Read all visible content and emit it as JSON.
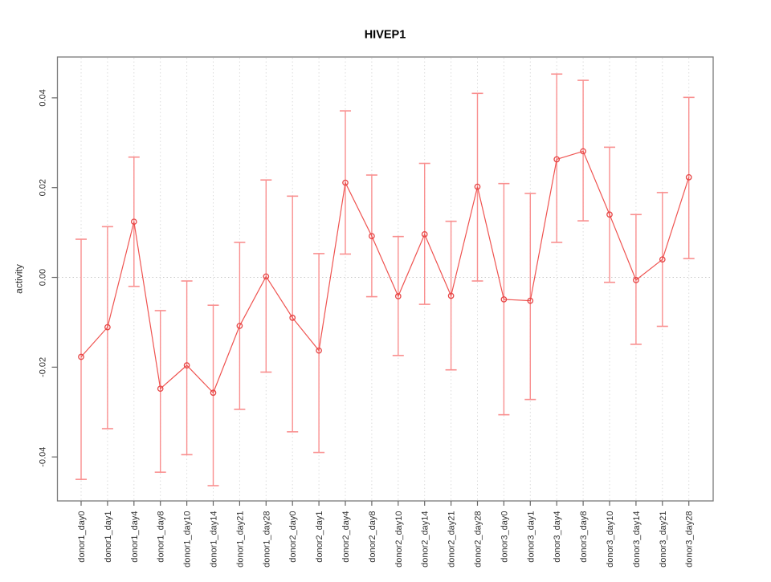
{
  "figure": {
    "title": "HIVEP1"
  },
  "chart_data": {
    "type": "line",
    "title": "HIVEP1",
    "xlabel": "",
    "ylabel": "activity",
    "legend": "none",
    "marker": "open-circle",
    "error_bars": true,
    "grid": {
      "vertical": "dotted line at every category",
      "horizontal": "dotted line at y=0 only"
    },
    "ylim": [
      -0.0498,
      0.0491
    ],
    "yticks": [
      -0.04,
      -0.02,
      0,
      0.02,
      0.04
    ],
    "ytick_labels": [
      "-0.04",
      "-0.02",
      "0.00",
      "0.02",
      "0.04"
    ],
    "reference_line_y": 0,
    "categories": [
      "donor1_day0",
      "donor1_day1",
      "donor1_day4",
      "donor1_day8",
      "donor1_day10",
      "donor1_day14",
      "donor1_day21",
      "donor1_day28",
      "donor2_day0",
      "donor2_day1",
      "donor2_day4",
      "donor2_day8",
      "donor2_day10",
      "donor2_day14",
      "donor2_day21",
      "donor2_day28",
      "donor3_day0",
      "donor3_day1",
      "donor3_day4",
      "donor3_day8",
      "donor3_day10",
      "donor3_day14",
      "donor3_day21",
      "donor3_day28"
    ],
    "series": [
      {
        "name": "HIVEP1 activity",
        "values": [
          -0.0177,
          -0.0111,
          0.0124,
          -0.0248,
          -0.0196,
          -0.0257,
          -0.0108,
          0.0002,
          -0.009,
          -0.0163,
          0.0211,
          0.0092,
          -0.0042,
          0.0096,
          -0.0041,
          0.0202,
          -0.0049,
          -0.0052,
          0.0263,
          0.0281,
          0.014,
          -0.0006,
          0.004,
          0.0223
        ],
        "upper": [
          0.0085,
          0.0113,
          0.0268,
          -0.0074,
          -0.0008,
          -0.0062,
          0.0078,
          0.0217,
          0.0181,
          0.0053,
          0.0371,
          0.0228,
          0.0091,
          0.0254,
          0.0125,
          0.041,
          0.0209,
          0.0187,
          0.0453,
          0.0439,
          0.029,
          0.014,
          0.0189,
          0.0401
        ],
        "lower": [
          -0.045,
          -0.0337,
          -0.002,
          -0.0434,
          -0.0395,
          -0.0464,
          -0.0294,
          -0.0211,
          -0.0344,
          -0.039,
          0.0052,
          -0.0043,
          -0.0174,
          -0.006,
          -0.0206,
          -0.0008,
          -0.0306,
          -0.0272,
          0.0078,
          0.0126,
          -0.0011,
          -0.0149,
          -0.0109,
          0.0042
        ]
      }
    ]
  },
  "colors": {
    "series_line": "#ef5350",
    "marker_stroke": "#e64545",
    "error_bar": "#f98f8f",
    "grid_line": "#dcdcdc",
    "zero_line": "#c9c9c9",
    "axis_box": "#7a7a7a",
    "tick": "#666666",
    "label_text": "#303030",
    "title_text": "#000000",
    "background": "#ffffff"
  }
}
